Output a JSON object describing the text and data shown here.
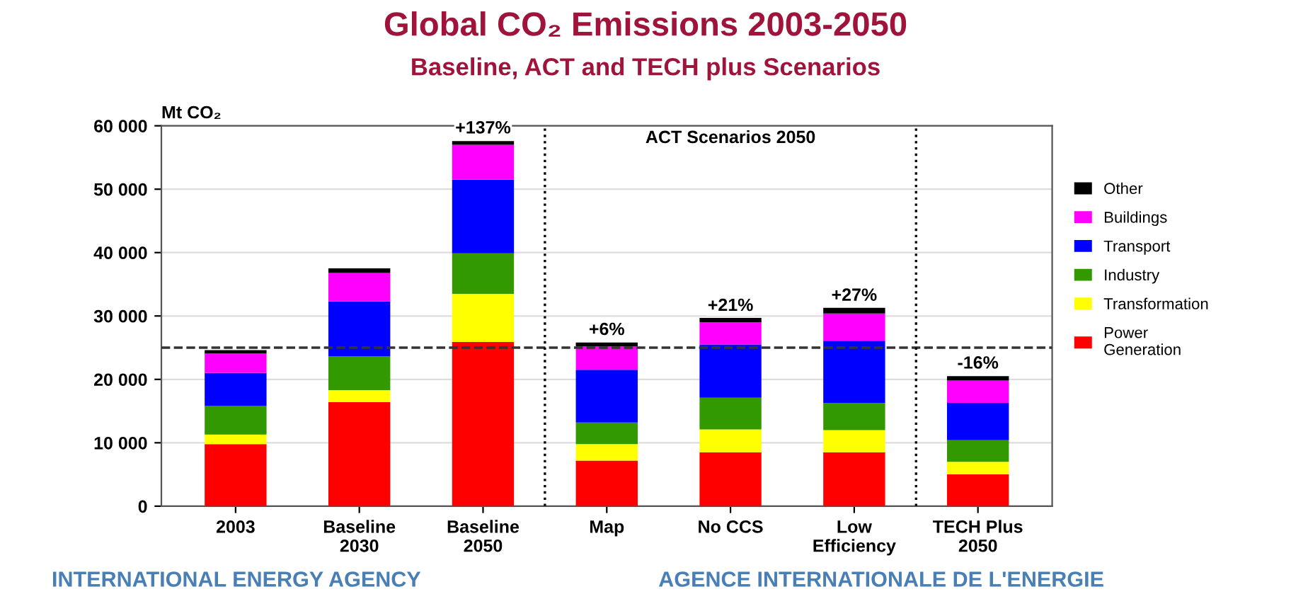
{
  "chart_data": {
    "type": "bar",
    "title": "Global CO₂ Emissions 2003-2050",
    "subtitle": "Baseline, ACT and TECH plus Scenarios",
    "ylabel": "Mt CO₂",
    "categories": [
      "2003",
      "Baseline\n2030",
      "Baseline\n2050",
      "Map",
      "No CCS",
      "Low\nEfficiency",
      "TECH Plus\n2050"
    ],
    "stacked": true,
    "series": [
      {
        "name": "Power\nGeneration",
        "color": "#ff0000",
        "values": [
          9800,
          16400,
          25900,
          7200,
          8500,
          8500,
          5000
        ]
      },
      {
        "name": "Transformation",
        "color": "#ffff00",
        "values": [
          1500,
          1900,
          7600,
          2600,
          3600,
          3500,
          2000
        ]
      },
      {
        "name": "Industry",
        "color": "#339900",
        "values": [
          4500,
          5300,
          6400,
          3400,
          5000,
          4300,
          3400
        ]
      },
      {
        "name": "Transport",
        "color": "#0000ff",
        "values": [
          5200,
          8700,
          11600,
          8300,
          8400,
          9800,
          5900
        ]
      },
      {
        "name": "Buildings",
        "color": "#ff00ff",
        "values": [
          3100,
          4500,
          5500,
          3700,
          3500,
          4300,
          3500
        ]
      },
      {
        "name": "Other",
        "color": "#000000",
        "values": [
          500,
          700,
          600,
          600,
          700,
          900,
          700
        ]
      }
    ],
    "ylim": [
      0,
      60000
    ],
    "yticks": [
      {
        "value": 0,
        "label": "0"
      },
      {
        "value": 10000,
        "label": "10 000"
      },
      {
        "value": 20000,
        "label": "20 000"
      },
      {
        "value": 30000,
        "label": "30 000"
      },
      {
        "value": 40000,
        "label": "40 000"
      },
      {
        "value": 50000,
        "label": "50 000"
      },
      {
        "value": 60000,
        "label": "60 000"
      }
    ],
    "grid": "y",
    "legend": "right",
    "ref_lines": [
      {
        "axis": "y",
        "value": 25000,
        "color": "#333333",
        "line_style": "dashed"
      }
    ],
    "annotations": [
      {
        "text": "+137%",
        "x": "Baseline\n2050",
        "y": 57600
      },
      {
        "text": "+6%",
        "x": "Map",
        "y": 25800
      },
      {
        "text": "+21%",
        "x": "No CCS",
        "y": 29600
      },
      {
        "text": "+27%",
        "x": "Low\nEfficiency",
        "y": 31200
      },
      {
        "text": "-16%",
        "x": "TECH Plus\n2050",
        "y": 20500
      },
      "ACT Scenarios 2050",
      "INTERNATIONAL ENERGY AGENCY",
      "AGENCE INTERNATIONALE DE L'ENERGIE"
    ]
  }
}
